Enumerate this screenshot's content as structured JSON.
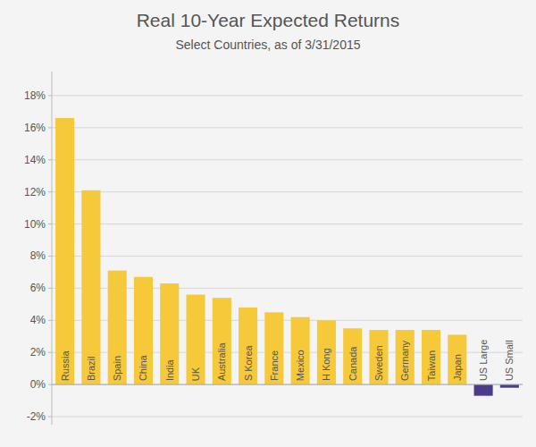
{
  "chart_data": {
    "type": "bar",
    "title": "Real 10-Year Expected Returns",
    "subtitle": "Select Countries, as of 3/31/2015",
    "categories": [
      "Russia",
      "Brazil",
      "Spain",
      "China",
      "India",
      "UK",
      "Australia",
      "S Korea",
      "France",
      "Mexico",
      "H Kong",
      "Canada",
      "Sweden",
      "Germany",
      "Taiwan",
      "Japan",
      "US Large",
      "US Small"
    ],
    "values": [
      16.6,
      12.1,
      7.1,
      6.7,
      6.3,
      5.6,
      5.4,
      4.8,
      4.5,
      4.2,
      4.0,
      3.5,
      3.4,
      3.4,
      3.4,
      3.1,
      -0.7,
      -0.2
    ],
    "colors": [
      "#F5C93A",
      "#F5C93A",
      "#F5C93A",
      "#F5C93A",
      "#F5C93A",
      "#F5C93A",
      "#F5C93A",
      "#F5C93A",
      "#F5C93A",
      "#F5C93A",
      "#F5C93A",
      "#F5C93A",
      "#F5C93A",
      "#F5C93A",
      "#F5C93A",
      "#F5C93A",
      "#4B3B8C",
      "#4B3B8C"
    ],
    "ylim": [
      -2.5,
      19.5
    ],
    "yticks": [
      {
        "value": -2,
        "label": "-2%"
      },
      {
        "value": 0,
        "label": "0%"
      },
      {
        "value": 2,
        "label": "2%"
      },
      {
        "value": 4,
        "label": "4%"
      },
      {
        "value": 6,
        "label": "6%"
      },
      {
        "value": 8,
        "label": "8%"
      },
      {
        "value": 10,
        "label": "10%"
      },
      {
        "value": 12,
        "label": "12%"
      },
      {
        "value": 14,
        "label": "14%"
      },
      {
        "value": 16,
        "label": "16%"
      },
      {
        "value": 18,
        "label": "18%"
      }
    ],
    "grid": true,
    "tick_labels": "y"
  }
}
